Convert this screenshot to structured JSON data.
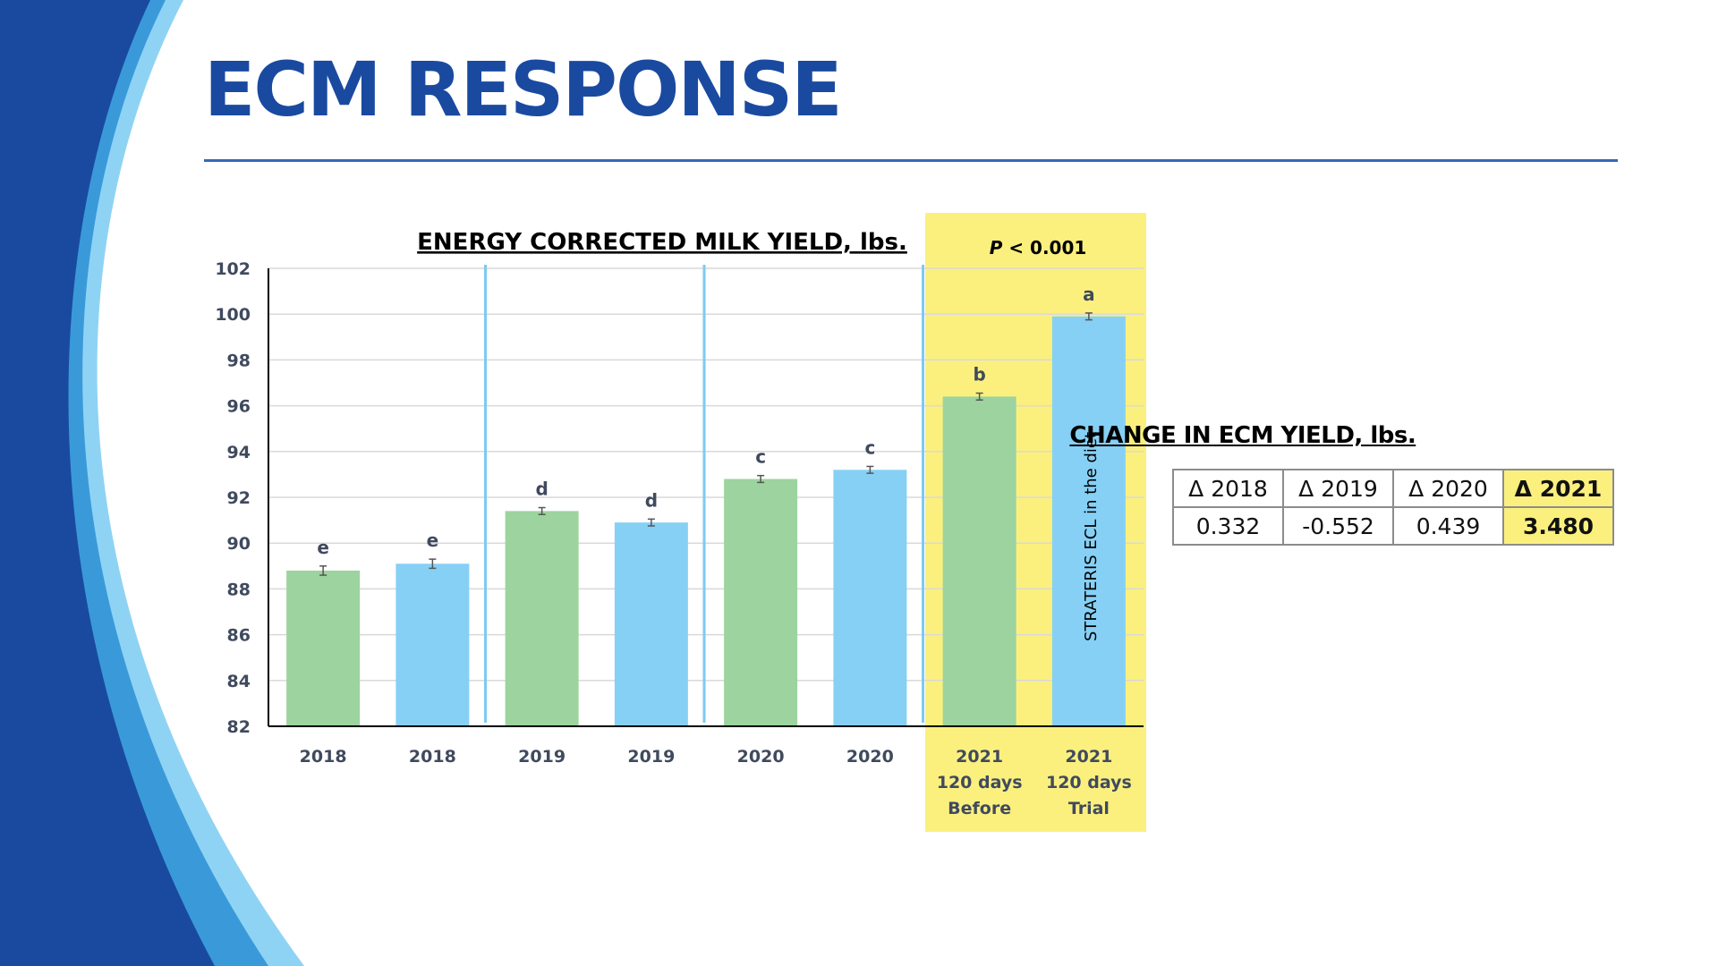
{
  "slide": {
    "title": "ECM RESPONSE"
  },
  "colors": {
    "brand_blue": "#1a4aa0",
    "bar_green": "#9cd39e",
    "bar_blue": "#86d0f5",
    "highlight_yellow": "#fbf07e",
    "divider_blue": "#7ecaf0"
  },
  "chart_data": {
    "type": "bar",
    "title": "ENERGY CORRECTED MILK YIELD, lbs.",
    "xlabel": "",
    "ylabel": "",
    "ylim": [
      82,
      102
    ],
    "yticks": [
      82,
      84,
      86,
      88,
      90,
      92,
      94,
      96,
      98,
      100,
      102
    ],
    "gridlines": true,
    "categories": [
      [
        "2018"
      ],
      [
        "2018"
      ],
      [
        "2019"
      ],
      [
        "2019"
      ],
      [
        "2020"
      ],
      [
        "2020"
      ],
      [
        "2021",
        "120 days",
        "Before"
      ],
      [
        "2021",
        "120 days",
        "Trial"
      ]
    ],
    "values": [
      88.8,
      89.1,
      91.4,
      90.9,
      92.8,
      93.2,
      96.4,
      99.9
    ],
    "error": [
      0.2,
      0.2,
      0.15,
      0.15,
      0.15,
      0.15,
      0.15,
      0.15
    ],
    "significance_letters": [
      "e",
      "e",
      "d",
      "d",
      "c",
      "c",
      "b",
      "a"
    ],
    "bar_colors": [
      "green",
      "blue",
      "green",
      "blue",
      "green",
      "blue",
      "green",
      "blue"
    ],
    "highlight_annotation": "P < 0.001",
    "highlight_p_symbol": "P",
    "highlight_p_rest": " < 0.001",
    "bar_annotation": "STRATERIS ECL in the diet"
  },
  "change_table": {
    "title": "CHANGE IN ECM YIELD, lbs.",
    "headers": [
      "Δ 2018",
      "Δ 2019",
      "Δ 2020",
      "Δ 2021"
    ],
    "values": [
      "0.332",
      "-0.552",
      "0.439",
      "3.480"
    ]
  }
}
